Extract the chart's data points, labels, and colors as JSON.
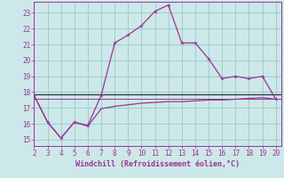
{
  "xlabel": "Windchill (Refroidissement éolien,°C)",
  "bg_color": "#cde8e8",
  "grid_color": "#a0cccc",
  "line_color": "#993399",
  "hline_color": "#333333",
  "x_ticks": [
    2,
    3,
    4,
    5,
    6,
    7,
    8,
    9,
    10,
    11,
    12,
    13,
    14,
    15,
    16,
    17,
    18,
    19,
    20
  ],
  "y_ticks": [
    15,
    16,
    17,
    18,
    19,
    20,
    21,
    22,
    23
  ],
  "xlim": [
    2,
    20.4
  ],
  "ylim": [
    14.6,
    23.7
  ],
  "main_x": [
    2,
    3,
    4,
    5,
    6,
    7,
    8,
    9,
    10,
    11,
    12,
    13,
    14,
    15,
    16,
    17,
    18,
    19,
    20
  ],
  "main_y": [
    17.8,
    16.1,
    15.1,
    16.1,
    15.9,
    17.8,
    21.1,
    21.6,
    22.2,
    23.1,
    23.5,
    21.1,
    21.1,
    20.1,
    18.85,
    19.0,
    18.85,
    19.0,
    17.55
  ],
  "hline1_y": 17.85,
  "hline2_y": 17.6,
  "lower_x": [
    2,
    3,
    4,
    5,
    6,
    7,
    8,
    9,
    10,
    11,
    12,
    13,
    14,
    15,
    16,
    17,
    18,
    19,
    20
  ],
  "lower_y": [
    17.8,
    16.1,
    15.1,
    16.1,
    15.85,
    16.95,
    17.1,
    17.2,
    17.3,
    17.35,
    17.4,
    17.4,
    17.45,
    17.5,
    17.5,
    17.55,
    17.6,
    17.65,
    17.55
  ]
}
